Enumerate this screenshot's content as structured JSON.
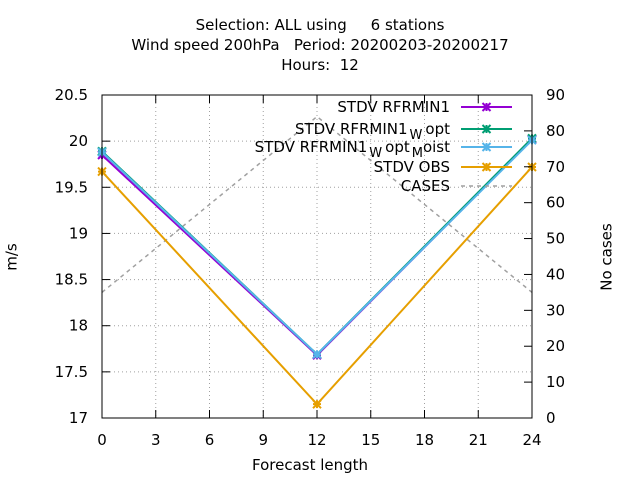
{
  "title_lines": [
    "Selection: ALL using     6 stations",
    "Wind speed 200hPa   Period: 20200203-20200217",
    "Hours:  12"
  ],
  "chart_data": {
    "type": "line",
    "xlabel": "Forecast length",
    "ylabel": "m/s",
    "y2label": "No cases",
    "xlim": [
      0,
      24
    ],
    "ylim": [
      17,
      20.5
    ],
    "y2lim": [
      0,
      90
    ],
    "xticks": [
      0,
      3,
      6,
      9,
      12,
      15,
      18,
      21,
      24
    ],
    "yticks": [
      "17",
      "17.5",
      "18",
      "18.5",
      "19",
      "19.5",
      "20",
      "20.5"
    ],
    "y2ticks": [
      0,
      10,
      20,
      30,
      40,
      50,
      60,
      70,
      80,
      90
    ],
    "grid": true,
    "legend_position": "top-right",
    "x": [
      0,
      12,
      24
    ],
    "series": [
      {
        "name": "STDV RFRMIN1",
        "legend_main": "STDV RFRMIN1",
        "legend_sub": "",
        "legend_tail": "",
        "axis": "y1",
        "color": "#9400d3",
        "marker": "x",
        "dash": false,
        "values": [
          19.85,
          17.68,
          20.02
        ]
      },
      {
        "name": "STDV RFRMIN1_W opt",
        "legend_main": "STDV RFRMIN1",
        "legend_sub": "W",
        "legend_tail": "opt",
        "axis": "y1",
        "color": "#009e73",
        "marker": "x",
        "dash": false,
        "values": [
          19.89,
          17.69,
          20.03
        ]
      },
      {
        "name": "STDV RFRMIN1_W opt_M oist",
        "legend_main": "STDV RFRMIN1",
        "legend_sub": "W",
        "legend_tail": "opt",
        "legend_sub2": "M",
        "legend_tail2": "oist",
        "axis": "y1",
        "color": "#56b4e9",
        "marker": "x",
        "dash": false,
        "values": [
          19.88,
          17.69,
          20.01
        ]
      },
      {
        "name": "STDV OBS",
        "legend_main": "STDV OBS",
        "legend_sub": "",
        "legend_tail": "",
        "axis": "y1",
        "color": "#e69f00",
        "marker": "x",
        "dash": false,
        "values": [
          19.67,
          17.15,
          19.72
        ]
      },
      {
        "name": "CASES",
        "legend_main": "CASES",
        "legend_sub": "",
        "legend_tail": "",
        "axis": "y2",
        "color": "#a0a0a0",
        "marker": "none",
        "dash": true,
        "values": [
          35,
          84,
          35
        ]
      }
    ]
  }
}
